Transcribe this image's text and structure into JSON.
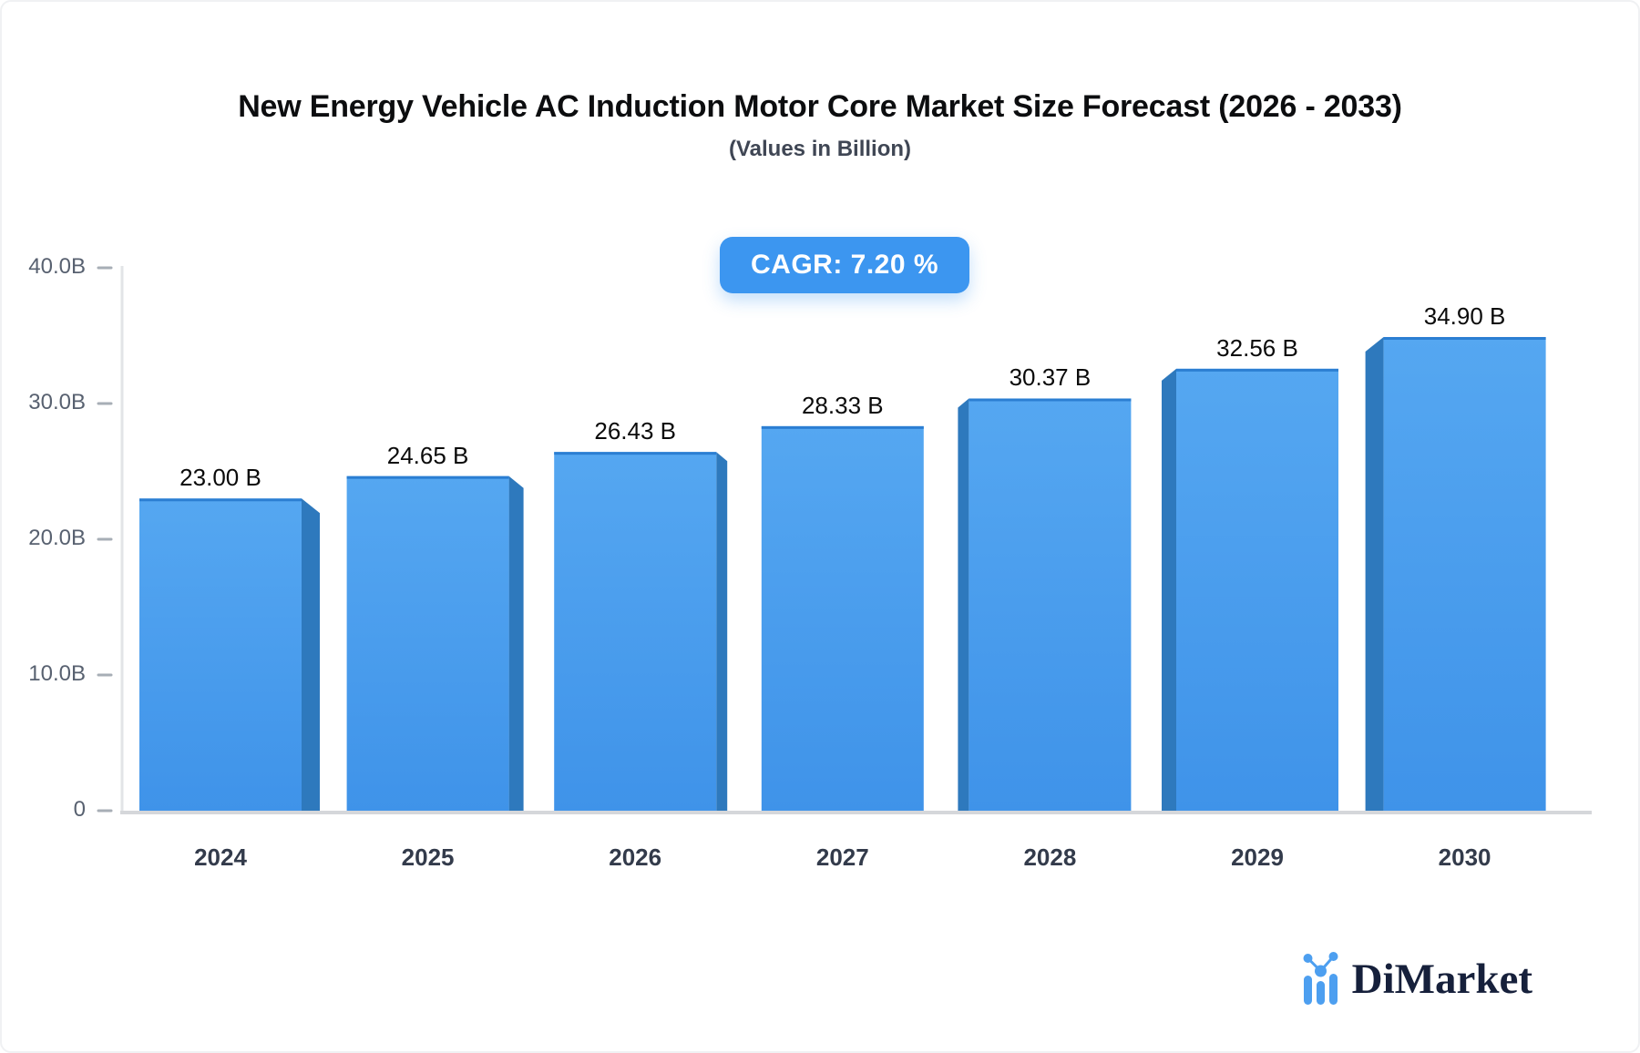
{
  "header": {
    "title": "New Energy Vehicle AC Induction Motor Core Market Size Forecast (2026 - 2033)",
    "subtitle": "(Values in Billion)"
  },
  "badge": {
    "label": "CAGR: 7.20 %"
  },
  "chart_data": {
    "type": "bar",
    "title": "New Energy Vehicle AC Induction Motor Core Market Size Forecast (2026 - 2033)",
    "subtitle": "(Values in Billion)",
    "cagr_percent": 7.2,
    "categories": [
      "2024",
      "2025",
      "2026",
      "2027",
      "2028",
      "2029",
      "2030"
    ],
    "values": [
      23.0,
      24.65,
      26.43,
      28.33,
      30.37,
      32.56,
      34.9
    ],
    "value_labels": [
      "23.00 B",
      "24.65 B",
      "26.43 B",
      "28.33 B",
      "30.37 B",
      "32.56 B",
      "34.90 B"
    ],
    "y_ticks": [
      {
        "label": "40.0B",
        "value": 40
      },
      {
        "label": "30.0B",
        "value": 30
      },
      {
        "label": "20.0B",
        "value": 20
      },
      {
        "label": "10.0B",
        "value": 10
      },
      {
        "label": "0",
        "value": 0
      }
    ],
    "ylim": [
      0,
      40
    ],
    "xlabel": "",
    "ylabel": "",
    "grid": false,
    "legend": false,
    "bar_face_color_top": "#55a7f1",
    "bar_face_color_bottom": "#3f93e9",
    "bar_top_edge_color": "#2b7ed2",
    "bar_side_color": "#2e79bd",
    "axis_line_color": "#d5d7da",
    "y_axis_line_color": "#e2e4e7",
    "tick_color": "#a7aeb6"
  },
  "logo": {
    "name": "DiMarket",
    "icon": "bar-chart-logo-icon",
    "icon_color": "#4d9ff0",
    "text_color": "#16203b"
  }
}
